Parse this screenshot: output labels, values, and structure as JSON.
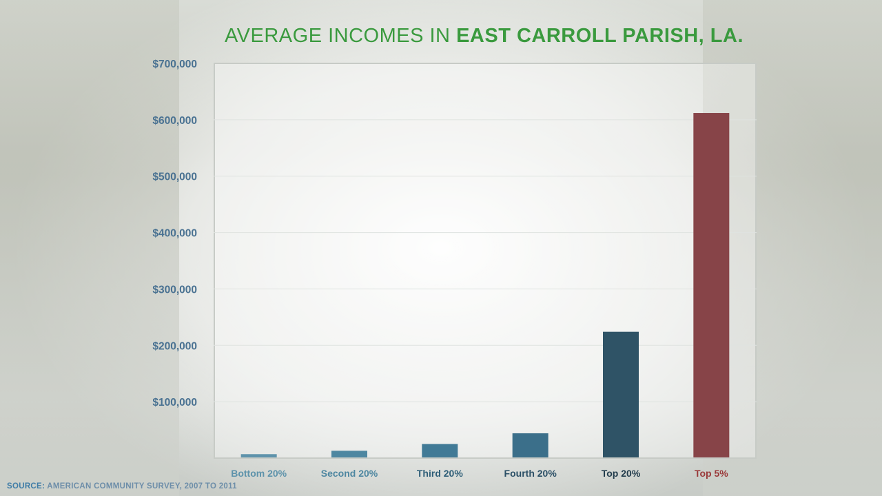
{
  "title": {
    "prefix": "AVERAGE INCOMES IN ",
    "emphasis": "EAST CARROLL PARISH, LA."
  },
  "source": {
    "label": "SOURCE:",
    "text": " AMERICAN COMMUNITY SURVEY, 2007 TO 2011"
  },
  "colors": {
    "title": "#3a9a3e",
    "ytick": "#4a7292",
    "grid": "#dfe3e0",
    "axis": "#c7cbc6"
  },
  "chart_data": {
    "type": "bar",
    "title": "AVERAGE INCOMES IN EAST CARROLL PARISH, LA.",
    "xlabel": "",
    "ylabel": "",
    "ylim": [
      0,
      700000
    ],
    "ytick_values": [
      100000,
      200000,
      300000,
      400000,
      500000,
      600000,
      700000
    ],
    "ytick_labels": [
      "$100,000",
      "$200,000",
      "$300,000",
      "$400,000",
      "$500,000",
      "$600,000",
      "$700,000"
    ],
    "categories": [
      "Bottom 20%",
      "Second 20%",
      "Third 20%",
      "Fourth 20%",
      "Top 20%",
      "Top 5%"
    ],
    "values": [
      7000,
      13000,
      25000,
      44000,
      224000,
      612000
    ],
    "bar_colors": [
      "#5e93ab",
      "#4e87a1",
      "#417a96",
      "#3b6f8a",
      "#2f5366",
      "#874448"
    ],
    "label_colors": [
      "#5e93ab",
      "#4e87a1",
      "#2e5e78",
      "#2b4f66",
      "#223c4c",
      "#9a3a3a"
    ],
    "grid": true,
    "legend": "none"
  }
}
